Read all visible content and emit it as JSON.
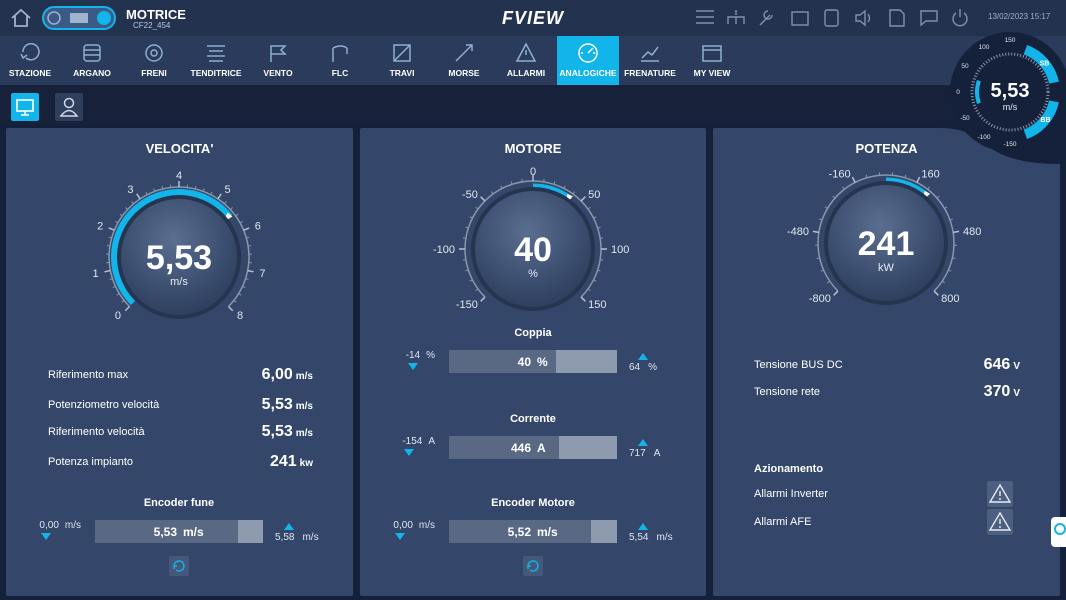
{
  "header": {
    "title": "MOTRICE",
    "subtitle": "CF22_454",
    "logo": "FVIEW",
    "datetime": "13/02/2023 15:17"
  },
  "nav": [
    {
      "label": "STAZIONE"
    },
    {
      "label": "ARGANO"
    },
    {
      "label": "FRENI"
    },
    {
      "label": "TENDITRICE"
    },
    {
      "label": "VENTO"
    },
    {
      "label": "FLC"
    },
    {
      "label": "TRAVI"
    },
    {
      "label": "MORSE"
    },
    {
      "label": "ALLARMI"
    },
    {
      "label": "ANALOGICHE",
      "active": true
    },
    {
      "label": "FRENATURE"
    },
    {
      "label": "MY VIEW"
    }
  ],
  "mini_gauge": {
    "value": "5,53",
    "unit": "m/s",
    "ticks": [
      -150,
      -100,
      -50,
      0,
      50,
      100,
      150
    ],
    "tags": [
      "SB",
      "BB"
    ]
  },
  "panels": {
    "velocita": {
      "title": "VELOCITA'",
      "gauge": {
        "value": "5,53",
        "unit": "m/s",
        "ticks": [
          0,
          1,
          2,
          3,
          4,
          5,
          6,
          7,
          8
        ]
      },
      "rows": [
        {
          "label": "Riferimento max",
          "value": "6,00",
          "unit": "m/s"
        },
        {
          "label": "Potenziometro velocità",
          "value": "5,53",
          "unit": "m/s"
        },
        {
          "label": "Riferimento velocità",
          "value": "5,53",
          "unit": "m/s"
        },
        {
          "label": "Potenza impianto",
          "value": 241,
          "unit": "kw"
        }
      ],
      "bars": [
        {
          "title": "Encoder fune",
          "min": "0,00",
          "min_unit": "m/s",
          "value": "5,53",
          "unit": "m/s",
          "max": "5,58",
          "max_unit": "m/s"
        }
      ]
    },
    "motore": {
      "title": "MOTORE",
      "gauge": {
        "value": 40,
        "unit": "%",
        "ticks": [
          -150,
          -100,
          -50,
          0,
          50,
          100,
          150
        ]
      },
      "bars": [
        {
          "title": "Coppia",
          "min": -14,
          "min_unit": "%",
          "value": 40,
          "unit": "%",
          "max": 64,
          "max_unit": "%"
        },
        {
          "title": "Corrente",
          "min": -154,
          "min_unit": "A",
          "value": 446,
          "unit": "A",
          "max": 717,
          "max_unit": "A"
        },
        {
          "title": "Encoder Motore",
          "min": "0,00",
          "min_unit": "m/s",
          "value": "5,52",
          "unit": "m/s",
          "max": "5,54",
          "max_unit": "m/s"
        }
      ]
    },
    "potenza": {
      "title": "POTENZA",
      "gauge": {
        "value": 241,
        "unit": "kW",
        "ticks": [
          -800,
          -480,
          -160,
          160,
          480,
          800
        ]
      },
      "rows": [
        {
          "label": "Tensione BUS DC",
          "value": 646,
          "unit": "V"
        },
        {
          "label": "Tensione rete",
          "value": 370,
          "unit": "V"
        }
      ],
      "section": "Azionamento",
      "alarms": [
        "Allarmi Inverter",
        "Allarmi AFE"
      ]
    }
  }
}
